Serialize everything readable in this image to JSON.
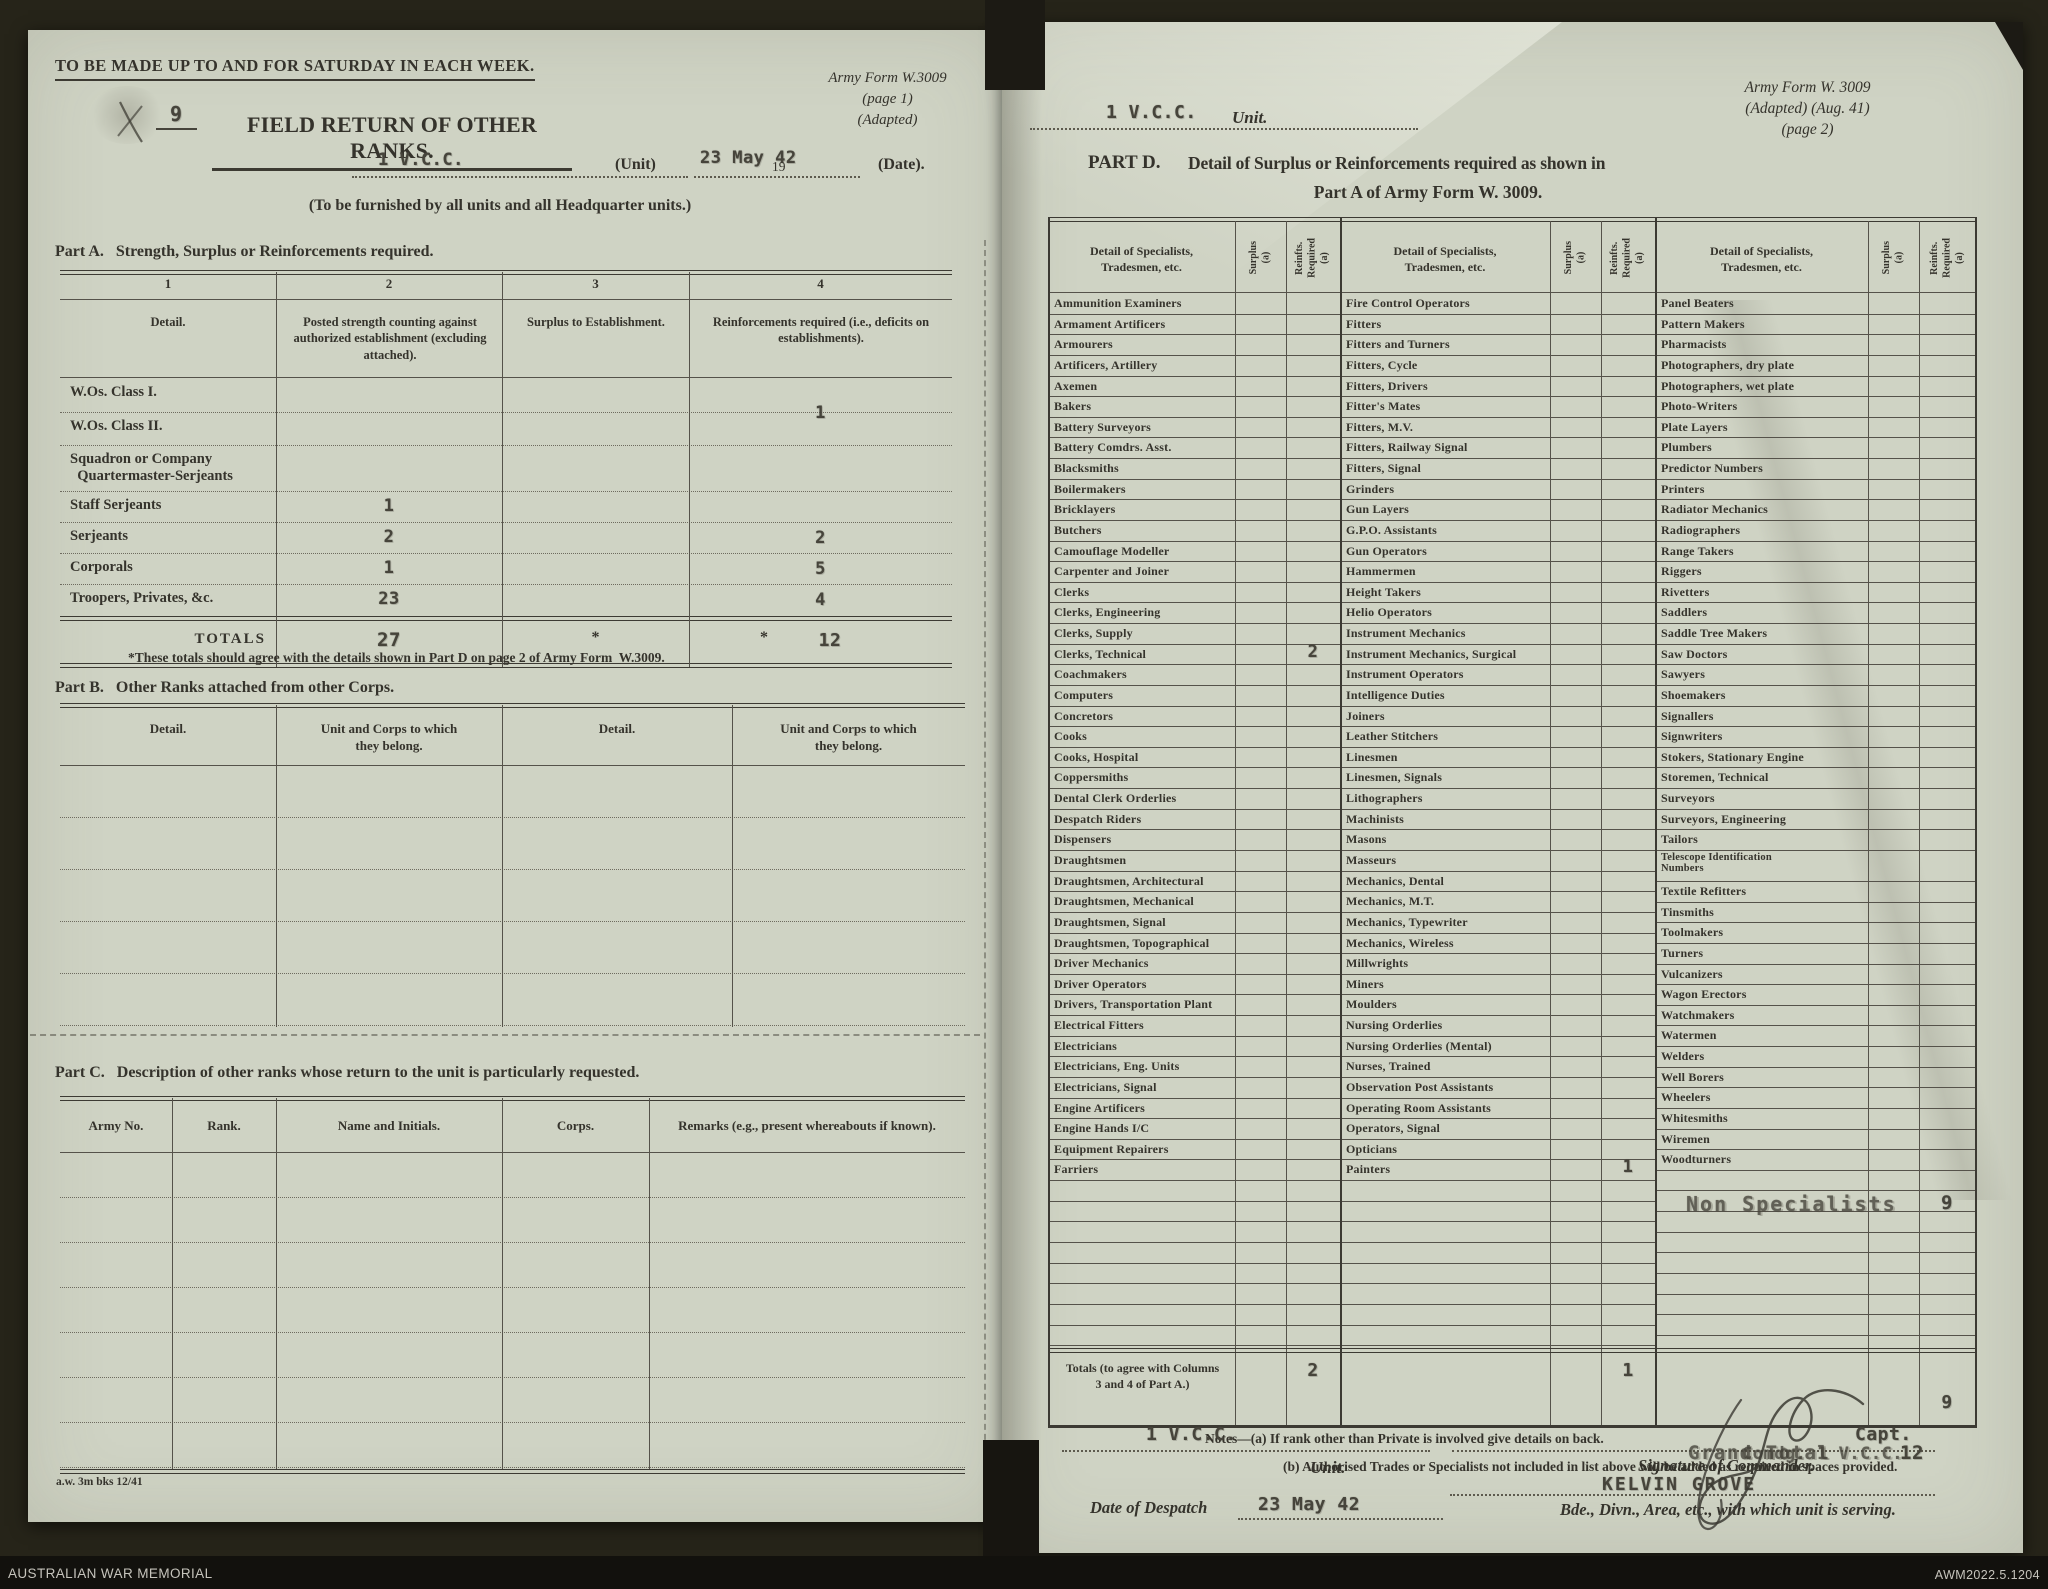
{
  "footer": {
    "archive": "AUSTRALIAN WAR MEMORIAL",
    "reference": "AWM2022.5.1204"
  },
  "page1": {
    "top_note": "TO BE MADE UP TO AND FOR SATURDAY IN EACH WEEK.",
    "form_ref": {
      "line1": "Army Form W.3009",
      "line2": "(page 1)",
      "line3": "(Adapted)"
    },
    "serial": "9",
    "title": "FIELD RETURN OF OTHER RANKS.",
    "unit_value": "1 V.C.C.",
    "unit_label": "(Unit)",
    "date_value": "23 May 42",
    "date_prefix": "19",
    "date_label": "(Date).",
    "furnish_note": "(To be furnished by all units and all Headquarter units.)",
    "part_a": {
      "heading": "Part A.   Strength, Surplus or Reinforcements required.",
      "col_numbers": [
        "1",
        "2",
        "3",
        "4"
      ],
      "headers": [
        "Detail.",
        "Posted strength counting against authorized establishment (excluding attached).",
        "Surplus to Establishment.",
        "Reinforcements required (i.e., deficits on establishments)."
      ],
      "rows": [
        {
          "label": "W.Os. Class I.",
          "posted": "",
          "surplus": "",
          "reinf": ""
        },
        {
          "label": "W.Os. Class II.",
          "posted": "",
          "surplus": "",
          "reinf": "1"
        },
        {
          "label": "Squadron or Company\n  Quartermaster-Serjeants",
          "posted": "",
          "surplus": "",
          "reinf": ""
        },
        {
          "label": "Staff Serjeants",
          "posted": "1",
          "surplus": "",
          "reinf": ""
        },
        {
          "label": "Serjeants",
          "posted": "2",
          "surplus": "",
          "reinf": "2"
        },
        {
          "label": "Corporals",
          "posted": "1",
          "surplus": "",
          "reinf": "5"
        },
        {
          "label": "Troopers, Privates, &c.",
          "posted": "23",
          "surplus": "",
          "reinf": "4"
        }
      ],
      "totals": {
        "label": "TOTALS",
        "posted": "27",
        "surplus_star": "*",
        "reinf_star": "*",
        "reinf": "12"
      },
      "footnote": "*These totals should agree with the details shown in Part D on page 2 of Army Form  W.3009."
    },
    "part_b": {
      "heading": "Part B.   Other Ranks attached from other Corps.",
      "headers": [
        "Detail.",
        "Unit and Corps to which\nthey belong.",
        "Detail.",
        "Unit and Corps to which\nthey belong."
      ],
      "empty_rows": 5
    },
    "part_c": {
      "heading": "Part C.   Description of other ranks whose return to the unit is particularly requested.",
      "headers": [
        "Army No.",
        "Rank.",
        "Name and Initials.",
        "Corps.",
        "Remarks (e.g., present whereabouts if known)."
      ],
      "empty_rows": 7
    },
    "print_code": "a.w. 3m bks 12/41"
  },
  "page2": {
    "unit_value": "1 V.C.C.",
    "unit_label": "Unit.",
    "form_ref": {
      "line1": "Army Form W. 3009",
      "line2": "(Adapted)  (Aug. 41)",
      "line3": "(page 2)"
    },
    "heading": {
      "part": "PART D.",
      "line1": "Detail of Surplus or Reinforcements required as shown in",
      "line2": "Part A of Army Form W. 3009."
    },
    "table": {
      "detail_header": "Detail of Specialists,\nTradesmen, etc.",
      "surplus_header": "Surplus\n(a)",
      "reinf_header": "Reinfts.\nRequired\n(a)",
      "groups": [
        {
          "items": [
            "Ammunition Examiners",
            "Armament Artificers",
            "Armourers",
            "Artificers, Artillery",
            "Axemen",
            "Bakers",
            "Battery Surveyors",
            "Battery Comdrs. Asst.",
            "Blacksmiths",
            "Boilermakers",
            "Bricklayers",
            "Butchers",
            "Camouflage Modeller",
            "Carpenter and Joiner",
            "Clerks",
            "Clerks, Engineering",
            "Clerks, Supply",
            "Clerks, Technical",
            "Coachmakers",
            "Computers",
            "Concretors",
            "Cooks",
            "Cooks, Hospital",
            "Coppersmiths",
            "Dental Clerk Orderlies",
            "Despatch Riders",
            "Dispensers",
            "Draughtsmen",
            "Draughtsmen, Architectural",
            "Draughtsmen, Mechanical",
            "Draughtsmen, Signal",
            "Draughtsmen, Topographical",
            "Driver Mechanics",
            "Driver Operators",
            "Drivers, Transportation Plant",
            "Electrical Fitters",
            "Electricians",
            "Electricians, Eng. Units",
            "Electricians, Signal",
            "Engine Artificers",
            "Engine Hands I/C",
            "Equipment Repairers",
            "Farriers"
          ],
          "values": {
            "17": "2"
          },
          "tall": -1
        },
        {
          "items": [
            "Fire Control Operators",
            "Fitters",
            "Fitters and Turners",
            "Fitters, Cycle",
            "Fitters, Drivers",
            "Fitter's Mates",
            "Fitters, M.V.",
            "Fitters, Railway Signal",
            "Fitters, Signal",
            "Grinders",
            "Gun Layers",
            "G.P.O. Assistants",
            "Gun Operators",
            "Hammermen",
            "Height Takers",
            "Helio Operators",
            "Instrument Mechanics",
            "Instrument Mechanics, Surgical",
            "Instrument Operators",
            "Intelligence Duties",
            "Joiners",
            "Leather Stitchers",
            "Linesmen",
            "Linesmen, Signals",
            "Lithographers",
            "Machinists",
            "Masons",
            "Masseurs",
            "Mechanics, Dental",
            "Mechanics, M.T.",
            "Mechanics, Typewriter",
            "Mechanics, Wireless",
            "Millwrights",
            "Miners",
            "Moulders",
            "Nursing Orderlies",
            "Nursing Orderlies (Mental)",
            "Nurses, Trained",
            "Observation Post Assistants",
            "Operating Room Assistants",
            "Operators, Signal",
            "Opticians",
            "Painters"
          ],
          "values": {
            "42": "1"
          },
          "tall": -1
        },
        {
          "items": [
            "Panel Beaters",
            "Pattern Makers",
            "Pharmacists",
            "Photographers, dry plate",
            "Photographers, wet plate",
            "Photo-Writers",
            "Plate Layers",
            "Plumbers",
            "Predictor Numbers",
            "Printers",
            "Radiator Mechanics",
            "Radiographers",
            "Range Takers",
            "Riggers",
            "Rivetters",
            "Saddlers",
            "Saddle Tree Makers",
            "Saw Doctors",
            "Sawyers",
            "Shoemakers",
            "Signallers",
            "Signwriters",
            "Stokers, Stationary Engine",
            "Storemen, Technical",
            "Surveyors",
            "Surveyors, Engineering",
            "Tailors",
            "Telescope Identification\nNumbers",
            "Textile Refitters",
            "Tinsmiths",
            "Toolmakers",
            "Turners",
            "Vulcanizers",
            "Wagon Erectors",
            "Watchmakers",
            "Watermen",
            "Welders",
            "Well Borers",
            "Wheelers",
            "Whitesmiths",
            "Wiremen",
            "Woodturners"
          ],
          "values": {},
          "tall": 27
        }
      ],
      "non_specialists": {
        "label": "Non Specialists",
        "reinf": "9"
      },
      "totals": {
        "label": "Totals (to agree with Columns\n3 and 4 of Part A.)",
        "g1_reinf": "2",
        "g2_reinf": "1",
        "g3_reinf": "9"
      }
    },
    "notes": {
      "a": "Notes—(a) If rank other than Private is involved give details on back.",
      "b": "(b) Authorised Trades or Specialists not included in list above will be added as required in spaces provided."
    },
    "grand_total": {
      "label": "Grand Total",
      "value": "12"
    },
    "sign_block": {
      "unit_value": "1 V.C.C.",
      "unit_label": "Unit.",
      "rank": "Capt.",
      "comdg": "Comdg.  1 V.C.C.",
      "sig_label": "Signature of Commander.",
      "location": "KELVIN GROVE",
      "bde_label": "Bde., Divn., Area, etc., with which unit is serving.",
      "despatch_label": "Date of Despatch",
      "despatch_value": "23 May 42"
    }
  },
  "colors": {
    "paper": "#cfd3c4",
    "ink": "#35332c",
    "typed": "#46443b",
    "mount": "#262419"
  }
}
